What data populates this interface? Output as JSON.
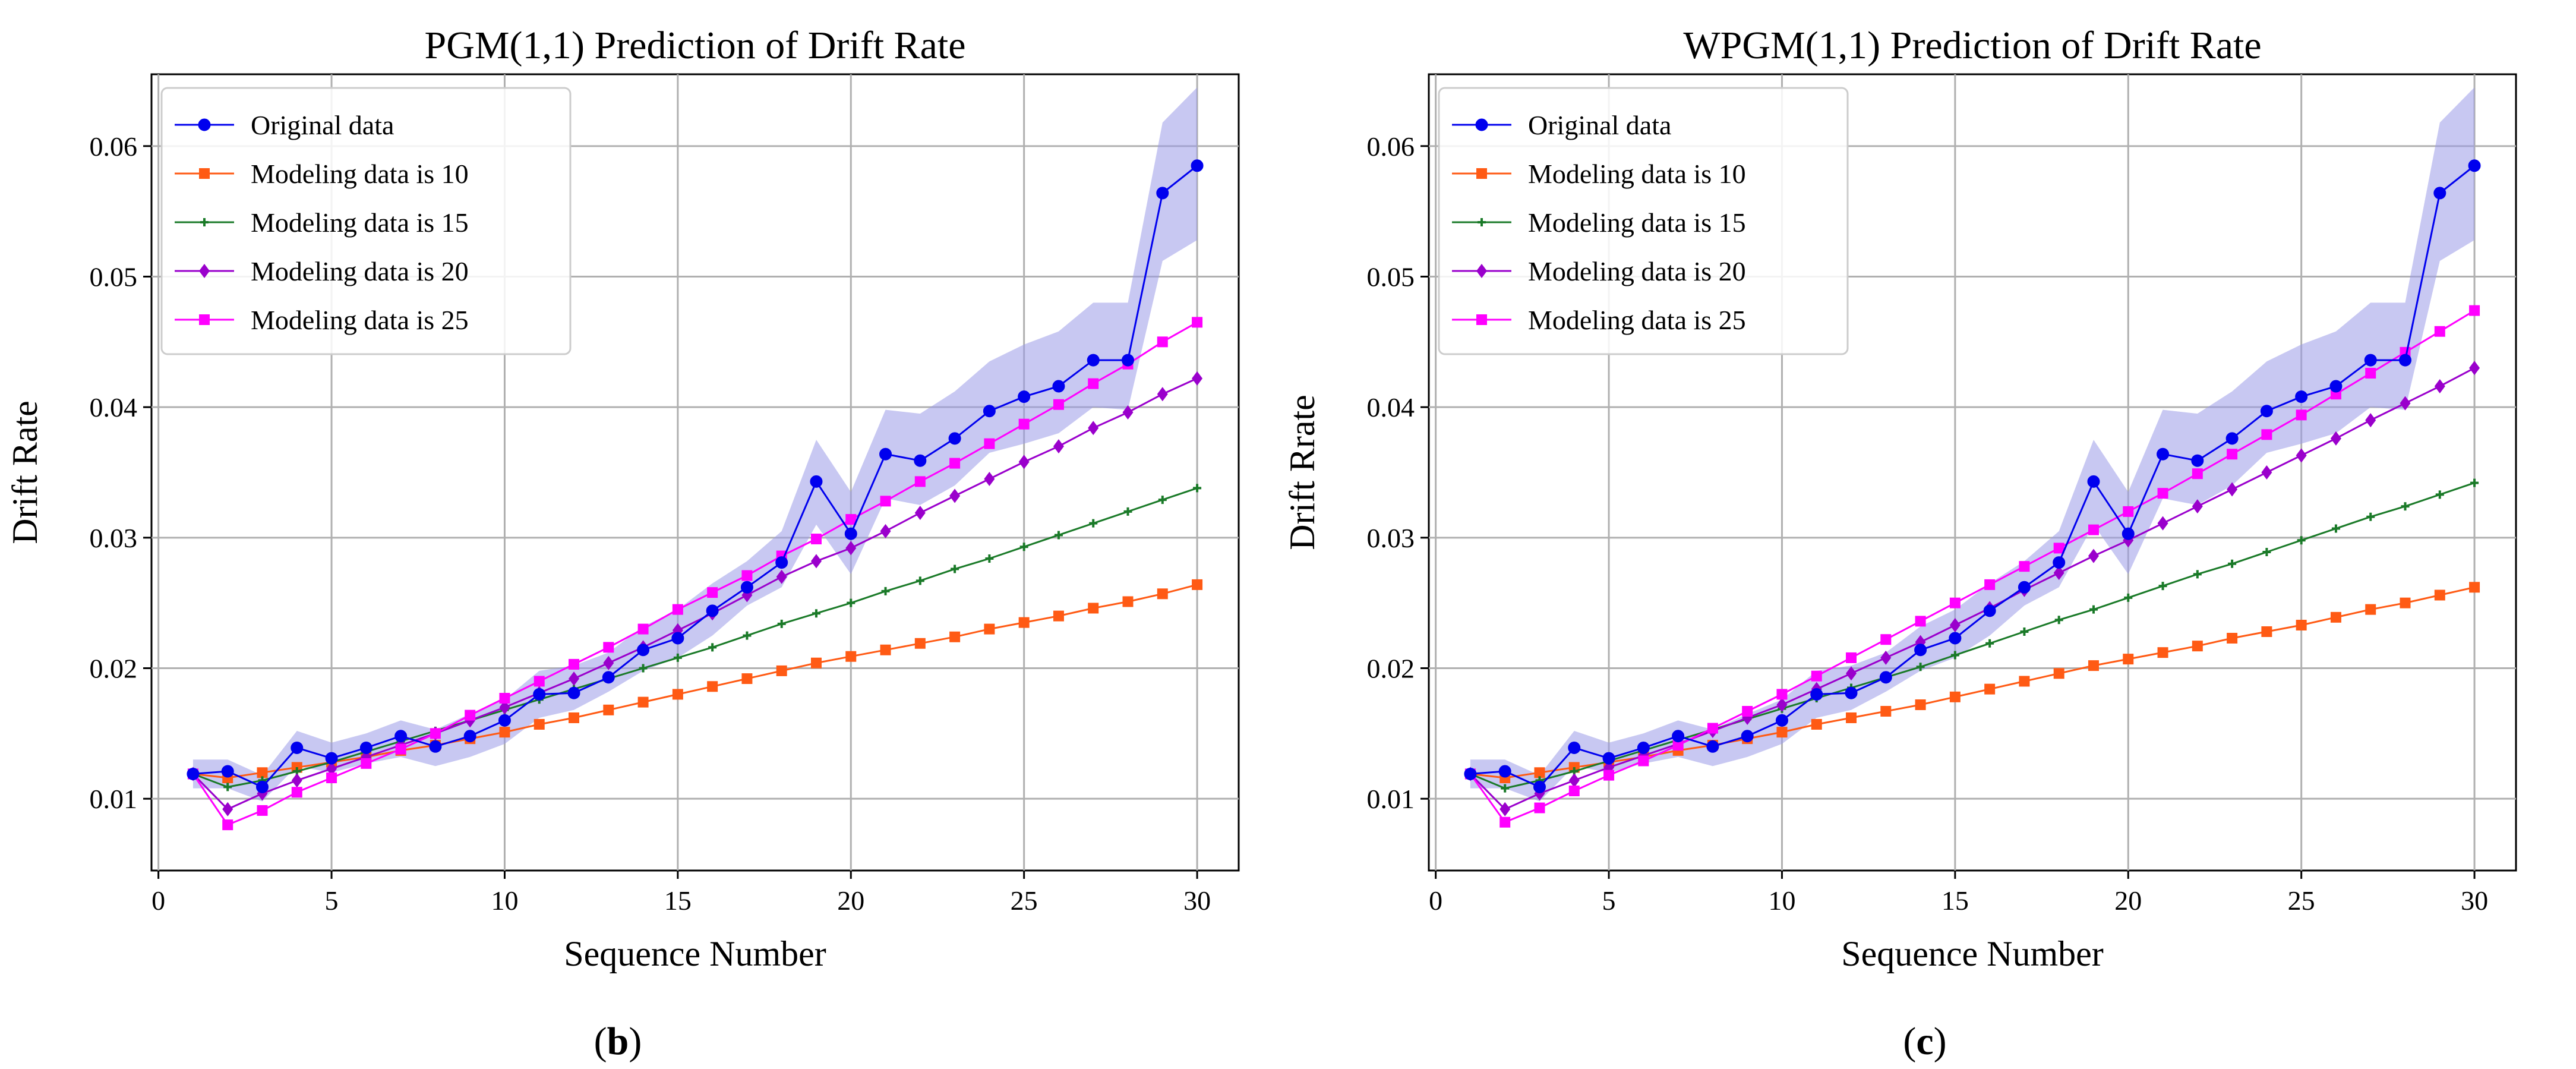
{
  "chart_data": [
    {
      "type": "line",
      "title": "PGM(1,1) Prediction of Drift Rate",
      "xlabel": "Sequence Number",
      "ylabel": "Drift Rate",
      "panel_label": "b",
      "xlim": [
        -0.2,
        31.2
      ],
      "ylim": [
        0.0045,
        0.0655
      ],
      "xticks": [
        0,
        5,
        10,
        15,
        20,
        25,
        30
      ],
      "yticks": [
        0.01,
        0.02,
        0.03,
        0.04,
        0.05,
        0.06
      ],
      "ytick_labels": [
        "0.01",
        "0.02",
        "0.03",
        "0.04",
        "0.05",
        "0.06"
      ],
      "grid": true,
      "legend_position": "top-left",
      "band": {
        "color": "#9a9ae8",
        "x": [
          1,
          2,
          3,
          4,
          5,
          6,
          7,
          8,
          9,
          10,
          11,
          12,
          13,
          14,
          15,
          16,
          17,
          18,
          19,
          20,
          21,
          22,
          23,
          24,
          25,
          26,
          27,
          28,
          29,
          30
        ],
        "lower": [
          0.0108,
          0.0108,
          0.0098,
          0.0125,
          0.012,
          0.0127,
          0.0132,
          0.0125,
          0.0132,
          0.0142,
          0.0162,
          0.0168,
          0.0182,
          0.0198,
          0.0208,
          0.0225,
          0.0248,
          0.0262,
          0.031,
          0.0272,
          0.033,
          0.0325,
          0.034,
          0.0365,
          0.0372,
          0.038,
          0.04,
          0.0398,
          0.0512,
          0.0528
        ],
        "upper": [
          0.013,
          0.013,
          0.0118,
          0.0152,
          0.0143,
          0.015,
          0.016,
          0.0153,
          0.0165,
          0.0176,
          0.0198,
          0.0202,
          0.0212,
          0.0232,
          0.0245,
          0.0265,
          0.0282,
          0.0305,
          0.0375,
          0.0335,
          0.0398,
          0.0395,
          0.0412,
          0.0435,
          0.0448,
          0.0458,
          0.048,
          0.048,
          0.0618,
          0.0645
        ]
      },
      "series": [
        {
          "name": "Original data",
          "color": "#0000ee",
          "marker": "circle",
          "x": [
            1,
            2,
            3,
            4,
            5,
            6,
            7,
            8,
            9,
            10,
            11,
            12,
            13,
            14,
            15,
            16,
            17,
            18,
            19,
            20,
            21,
            22,
            23,
            24,
            25,
            26,
            27,
            28,
            29,
            30
          ],
          "y": [
            0.0119,
            0.0121,
            0.0109,
            0.0139,
            0.0131,
            0.0139,
            0.0148,
            0.014,
            0.0148,
            0.016,
            0.018,
            0.0181,
            0.0193,
            0.0214,
            0.0223,
            0.0244,
            0.0262,
            0.0281,
            0.0343,
            0.0303,
            0.0364,
            0.0359,
            0.0376,
            0.0397,
            0.0408,
            0.0416,
            0.0436,
            0.0436,
            0.0564,
            0.0585
          ]
        },
        {
          "name": "Modeling data is 10",
          "color": "#ff5a14",
          "marker": "square",
          "x": [
            1,
            2,
            3,
            4,
            5,
            6,
            7,
            8,
            9,
            10,
            11,
            12,
            13,
            14,
            15,
            16,
            17,
            18,
            19,
            20,
            21,
            22,
            23,
            24,
            25,
            26,
            27,
            28,
            29,
            30
          ],
          "y": [
            0.0119,
            0.0116,
            0.012,
            0.0124,
            0.0128,
            0.0132,
            0.0137,
            0.0141,
            0.0146,
            0.0151,
            0.0157,
            0.0162,
            0.0168,
            0.0174,
            0.018,
            0.0186,
            0.0192,
            0.0198,
            0.0204,
            0.0209,
            0.0214,
            0.0219,
            0.0224,
            0.023,
            0.0235,
            0.024,
            0.0246,
            0.0251,
            0.0257,
            0.0264
          ]
        },
        {
          "name": "Modeling data is 15",
          "color": "#1a7a28",
          "marker": "plus",
          "x": [
            1,
            2,
            3,
            4,
            5,
            6,
            7,
            8,
            9,
            10,
            11,
            12,
            13,
            14,
            15,
            16,
            17,
            18,
            19,
            20,
            21,
            22,
            23,
            24,
            25,
            26,
            27,
            28,
            29,
            30
          ],
          "y": [
            0.0119,
            0.0109,
            0.0114,
            0.0121,
            0.0128,
            0.0136,
            0.0144,
            0.0152,
            0.016,
            0.0168,
            0.0176,
            0.0184,
            0.0192,
            0.02,
            0.0208,
            0.0216,
            0.0225,
            0.0234,
            0.0242,
            0.025,
            0.0259,
            0.0267,
            0.0276,
            0.0284,
            0.0293,
            0.0302,
            0.0311,
            0.032,
            0.0329,
            0.0338
          ]
        },
        {
          "name": "Modeling data is 20",
          "color": "#9a00cc",
          "marker": "diamond",
          "x": [
            1,
            2,
            3,
            4,
            5,
            6,
            7,
            8,
            9,
            10,
            11,
            12,
            13,
            14,
            15,
            16,
            17,
            18,
            19,
            20,
            21,
            22,
            23,
            24,
            25,
            26,
            27,
            28,
            29,
            30
          ],
          "y": [
            0.0119,
            0.0092,
            0.0104,
            0.0114,
            0.0123,
            0.0132,
            0.0141,
            0.015,
            0.016,
            0.017,
            0.0181,
            0.0192,
            0.0204,
            0.0216,
            0.0229,
            0.0242,
            0.0256,
            0.027,
            0.0282,
            0.0292,
            0.0305,
            0.0319,
            0.0332,
            0.0345,
            0.0358,
            0.037,
            0.0384,
            0.0396,
            0.041,
            0.0422
          ]
        },
        {
          "name": "Modeling data is 25",
          "color": "#ff00ff",
          "marker": "square",
          "x": [
            1,
            2,
            3,
            4,
            5,
            6,
            7,
            8,
            9,
            10,
            11,
            12,
            13,
            14,
            15,
            16,
            17,
            18,
            19,
            20,
            21,
            22,
            23,
            24,
            25,
            26,
            27,
            28,
            29,
            30
          ],
          "y": [
            0.0119,
            0.008,
            0.0091,
            0.0105,
            0.0116,
            0.0127,
            0.0138,
            0.015,
            0.0164,
            0.0177,
            0.019,
            0.0203,
            0.0216,
            0.023,
            0.0245,
            0.0258,
            0.0271,
            0.0286,
            0.0299,
            0.0314,
            0.0328,
            0.0343,
            0.0357,
            0.0372,
            0.0387,
            0.0402,
            0.0418,
            0.0433,
            0.045,
            0.0465
          ]
        }
      ]
    },
    {
      "type": "line",
      "title": "WPGM(1,1) Prediction of Drift Rate",
      "xlabel": "Sequence Number",
      "ylabel": "Drift Rrate",
      "panel_label": "c",
      "xlim": [
        -0.2,
        31.2
      ],
      "ylim": [
        0.0045,
        0.0655
      ],
      "xticks": [
        0,
        5,
        10,
        15,
        20,
        25,
        30
      ],
      "yticks": [
        0.01,
        0.02,
        0.03,
        0.04,
        0.05,
        0.06
      ],
      "ytick_labels": [
        "0.01",
        "0.02",
        "0.03",
        "0.04",
        "0.05",
        "0.06"
      ],
      "grid": true,
      "legend_position": "top-left",
      "band": {
        "color": "#9a9ae8",
        "x": [
          1,
          2,
          3,
          4,
          5,
          6,
          7,
          8,
          9,
          10,
          11,
          12,
          13,
          14,
          15,
          16,
          17,
          18,
          19,
          20,
          21,
          22,
          23,
          24,
          25,
          26,
          27,
          28,
          29,
          30
        ],
        "lower": [
          0.0108,
          0.0108,
          0.0098,
          0.0125,
          0.012,
          0.0127,
          0.0132,
          0.0125,
          0.0132,
          0.0142,
          0.0162,
          0.0168,
          0.0182,
          0.0198,
          0.0208,
          0.0225,
          0.0248,
          0.0262,
          0.031,
          0.0272,
          0.033,
          0.0325,
          0.034,
          0.0365,
          0.0372,
          0.038,
          0.04,
          0.0398,
          0.0512,
          0.0528
        ],
        "upper": [
          0.013,
          0.013,
          0.0118,
          0.0152,
          0.0143,
          0.015,
          0.016,
          0.0153,
          0.0165,
          0.0176,
          0.0198,
          0.0202,
          0.0212,
          0.0232,
          0.0245,
          0.0265,
          0.0282,
          0.0305,
          0.0375,
          0.0335,
          0.0398,
          0.0395,
          0.0412,
          0.0435,
          0.0448,
          0.0458,
          0.048,
          0.048,
          0.0618,
          0.0645
        ]
      },
      "series": [
        {
          "name": "Original data",
          "color": "#0000ee",
          "marker": "circle",
          "x": [
            1,
            2,
            3,
            4,
            5,
            6,
            7,
            8,
            9,
            10,
            11,
            12,
            13,
            14,
            15,
            16,
            17,
            18,
            19,
            20,
            21,
            22,
            23,
            24,
            25,
            26,
            27,
            28,
            29,
            30
          ],
          "y": [
            0.0119,
            0.0121,
            0.0109,
            0.0139,
            0.0131,
            0.0139,
            0.0148,
            0.014,
            0.0148,
            0.016,
            0.018,
            0.0181,
            0.0193,
            0.0214,
            0.0223,
            0.0244,
            0.0262,
            0.0281,
            0.0343,
            0.0303,
            0.0364,
            0.0359,
            0.0376,
            0.0397,
            0.0408,
            0.0416,
            0.0436,
            0.0436,
            0.0564,
            0.0585
          ]
        },
        {
          "name": "Modeling data is 10",
          "color": "#ff5a14",
          "marker": "square",
          "x": [
            1,
            2,
            3,
            4,
            5,
            6,
            7,
            8,
            9,
            10,
            11,
            12,
            13,
            14,
            15,
            16,
            17,
            18,
            19,
            20,
            21,
            22,
            23,
            24,
            25,
            26,
            27,
            28,
            29,
            30
          ],
          "y": [
            0.0119,
            0.0116,
            0.012,
            0.0124,
            0.0128,
            0.0132,
            0.0137,
            0.0141,
            0.0146,
            0.0151,
            0.0157,
            0.0162,
            0.0167,
            0.0172,
            0.0178,
            0.0184,
            0.019,
            0.0196,
            0.0202,
            0.0207,
            0.0212,
            0.0217,
            0.0223,
            0.0228,
            0.0233,
            0.0239,
            0.0245,
            0.025,
            0.0256,
            0.0262
          ]
        },
        {
          "name": "Modeling data is 15",
          "color": "#1a7a28",
          "marker": "plus",
          "x": [
            1,
            2,
            3,
            4,
            5,
            6,
            7,
            8,
            9,
            10,
            11,
            12,
            13,
            14,
            15,
            16,
            17,
            18,
            19,
            20,
            21,
            22,
            23,
            24,
            25,
            26,
            27,
            28,
            29,
            30
          ],
          "y": [
            0.0119,
            0.0108,
            0.0114,
            0.0121,
            0.0129,
            0.0137,
            0.0145,
            0.0153,
            0.0161,
            0.0169,
            0.0177,
            0.0185,
            0.0193,
            0.0201,
            0.021,
            0.0219,
            0.0228,
            0.0237,
            0.0245,
            0.0254,
            0.0263,
            0.0272,
            0.028,
            0.0289,
            0.0298,
            0.0307,
            0.0316,
            0.0324,
            0.0333,
            0.0342
          ]
        },
        {
          "name": "Modeling data is 20",
          "color": "#9a00cc",
          "marker": "diamond",
          "x": [
            1,
            2,
            3,
            4,
            5,
            6,
            7,
            8,
            9,
            10,
            11,
            12,
            13,
            14,
            15,
            16,
            17,
            18,
            19,
            20,
            21,
            22,
            23,
            24,
            25,
            26,
            27,
            28,
            29,
            30
          ],
          "y": [
            0.0119,
            0.0092,
            0.0104,
            0.0114,
            0.0124,
            0.0133,
            0.0142,
            0.0152,
            0.0162,
            0.0172,
            0.0184,
            0.0196,
            0.0208,
            0.022,
            0.0233,
            0.0246,
            0.026,
            0.0273,
            0.0286,
            0.0298,
            0.0311,
            0.0324,
            0.0337,
            0.035,
            0.0363,
            0.0376,
            0.039,
            0.0403,
            0.0416,
            0.043
          ]
        },
        {
          "name": "Modeling data is 25",
          "color": "#ff00ff",
          "marker": "square",
          "x": [
            1,
            2,
            3,
            4,
            5,
            6,
            7,
            8,
            9,
            10,
            11,
            12,
            13,
            14,
            15,
            16,
            17,
            18,
            19,
            20,
            21,
            22,
            23,
            24,
            25,
            26,
            27,
            28,
            29,
            30
          ],
          "y": [
            0.0119,
            0.0082,
            0.0093,
            0.0106,
            0.0118,
            0.0129,
            0.0141,
            0.0154,
            0.0167,
            0.018,
            0.0194,
            0.0208,
            0.0222,
            0.0236,
            0.025,
            0.0264,
            0.0278,
            0.0292,
            0.0306,
            0.032,
            0.0334,
            0.0349,
            0.0364,
            0.0379,
            0.0394,
            0.041,
            0.0426,
            0.0442,
            0.0458,
            0.0474
          ]
        }
      ]
    }
  ]
}
